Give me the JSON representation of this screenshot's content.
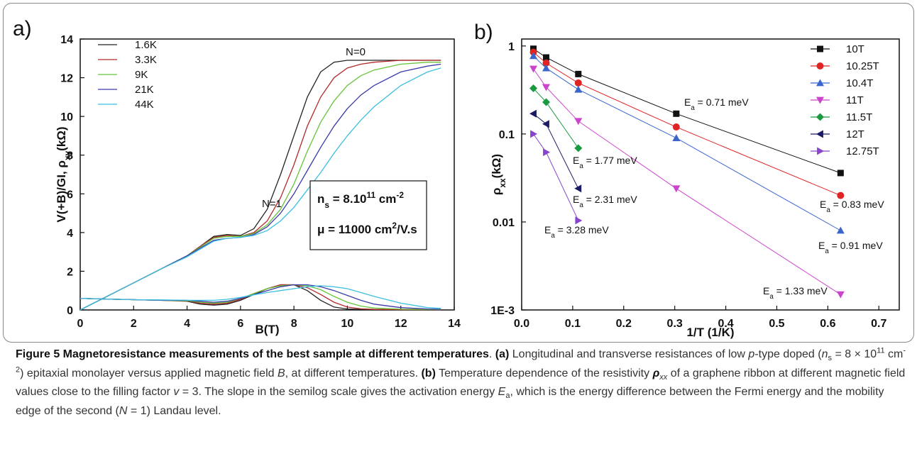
{
  "chart_data": [
    {
      "type": "line",
      "panel_label": "a)",
      "xlabel": "B(T)",
      "ylabel": {
        "runs": [
          {
            "text": "V(+B)/GI, ρ"
          },
          {
            "text": "xy",
            "style": [
              "sub"
            ]
          },
          {
            "text": "(kΩ)"
          }
        ]
      },
      "xlim": [
        0,
        14
      ],
      "ylim": [
        0,
        14
      ],
      "xticks": [
        0,
        2,
        4,
        6,
        8,
        10,
        12,
        14
      ],
      "yticks": [
        0,
        2,
        4,
        6,
        8,
        10,
        12,
        14
      ],
      "legend": "upper left",
      "x": [
        0,
        1,
        2,
        3,
        4,
        4.5,
        5,
        5.5,
        6,
        6.5,
        7,
        7.5,
        8,
        8.5,
        9,
        9.5,
        10,
        10.5,
        11,
        12,
        13,
        13.5
      ],
      "series": [
        {
          "name": "1.6K",
          "color": "#222222",
          "values": [
            0,
            0.7,
            1.4,
            2.1,
            2.8,
            3.3,
            3.8,
            3.9,
            3.85,
            4.2,
            5.2,
            7.0,
            9.0,
            11.0,
            12.3,
            12.8,
            12.9,
            12.9,
            12.9,
            12.9,
            12.9,
            12.9
          ],
          "rxx_values": [
            0.6,
            0.56,
            0.53,
            0.5,
            0.45,
            0.3,
            0.25,
            0.3,
            0.5,
            0.8,
            1.1,
            1.3,
            1.3,
            1.0,
            0.5,
            0.15,
            0.05,
            0.03,
            0.02,
            0.02,
            0.02,
            0.02
          ]
        },
        {
          "name": "3.3K",
          "color": "#b22a2a",
          "values": [
            0,
            0.7,
            1.4,
            2.1,
            2.8,
            3.3,
            3.75,
            3.85,
            3.8,
            4.0,
            4.6,
            5.8,
            7.5,
            9.5,
            11.0,
            12.0,
            12.5,
            12.7,
            12.8,
            12.9,
            12.9,
            12.9
          ],
          "rxx_values": [
            0.6,
            0.56,
            0.53,
            0.5,
            0.47,
            0.35,
            0.3,
            0.35,
            0.55,
            0.85,
            1.1,
            1.3,
            1.3,
            1.15,
            0.8,
            0.4,
            0.15,
            0.06,
            0.03,
            0.02,
            0.02,
            0.02
          ]
        },
        {
          "name": "9K",
          "color": "#66c43a",
          "values": [
            0,
            0.7,
            1.4,
            2.1,
            2.8,
            3.25,
            3.7,
            3.8,
            3.8,
            3.95,
            4.4,
            5.2,
            6.5,
            8.2,
            9.7,
            10.8,
            11.6,
            12.1,
            12.4,
            12.7,
            12.8,
            12.8
          ],
          "rxx_values": [
            0.6,
            0.56,
            0.53,
            0.5,
            0.48,
            0.4,
            0.35,
            0.4,
            0.6,
            0.85,
            1.1,
            1.25,
            1.3,
            1.25,
            1.05,
            0.7,
            0.4,
            0.2,
            0.1,
            0.04,
            0.03,
            0.03
          ]
        },
        {
          "name": "21K",
          "color": "#3a3aa8",
          "values": [
            0,
            0.7,
            1.4,
            2.1,
            2.8,
            3.2,
            3.6,
            3.7,
            3.75,
            3.9,
            4.3,
            5.0,
            6.0,
            7.2,
            8.4,
            9.5,
            10.4,
            11.1,
            11.6,
            12.3,
            12.6,
            12.7
          ],
          "rxx_values": [
            0.6,
            0.56,
            0.53,
            0.5,
            0.5,
            0.45,
            0.4,
            0.45,
            0.6,
            0.8,
            1.0,
            1.2,
            1.3,
            1.3,
            1.2,
            1.0,
            0.75,
            0.5,
            0.3,
            0.12,
            0.05,
            0.04
          ]
        },
        {
          "name": "44K",
          "color": "#3cbfe0",
          "values": [
            0,
            0.7,
            1.4,
            2.1,
            2.75,
            3.15,
            3.55,
            3.7,
            3.75,
            3.85,
            4.1,
            4.6,
            5.3,
            6.2,
            7.1,
            8.1,
            9.0,
            9.8,
            10.5,
            11.6,
            12.3,
            12.5
          ],
          "rxx_values": [
            0.6,
            0.56,
            0.53,
            0.52,
            0.5,
            0.5,
            0.5,
            0.55,
            0.65,
            0.78,
            0.9,
            1.0,
            1.1,
            1.2,
            1.25,
            1.2,
            1.1,
            0.9,
            0.7,
            0.35,
            0.12,
            0.08
          ]
        }
      ],
      "annotations": [
        {
          "runs": [
            {
              "text": "N=0"
            }
          ]
        },
        {
          "runs": [
            {
              "text": "N=1"
            }
          ]
        },
        {
          "runs": [
            {
              "text": "n"
            },
            {
              "text": "s",
              "style": [
                "sub"
              ]
            },
            {
              "text": " = 8.10"
            },
            {
              "text": "11",
              "style": [
                "sup"
              ]
            },
            {
              "text": " cm"
            },
            {
              "text": "-2",
              "style": [
                "sup"
              ]
            }
          ]
        },
        {
          "runs": [
            {
              "text": "μ = 11000 cm"
            },
            {
              "text": "2",
              "style": [
                "sup"
              ]
            },
            {
              "text": "/V.s"
            }
          ]
        }
      ]
    },
    {
      "type": "scatter",
      "panel_label": "b)",
      "xlabel": "1/T (1/K)",
      "ylabel": {
        "runs": [
          {
            "text": "ρ"
          },
          {
            "text": "xx",
            "style": [
              "sub"
            ]
          },
          {
            "text": "(kΩ)"
          }
        ]
      },
      "yscale": "log",
      "xlim": [
        0,
        0.74
      ],
      "ylim": [
        0.001,
        1.2
      ],
      "xticks": [
        {
          "value": 0,
          "label": "0.0"
        },
        0.1,
        0.2,
        0.3,
        0.4,
        0.5,
        0.6,
        0.7
      ],
      "yticks": [
        {
          "value": 0.001,
          "label": "1E-3"
        },
        0.01,
        0.1,
        1
      ],
      "legend": "upper right",
      "series": [
        {
          "name": "10T",
          "color": "#111111",
          "marker": "square",
          "x": [
            0.023,
            0.048,
            0.111,
            0.303,
            0.625
          ],
          "values": [
            0.93,
            0.74,
            0.48,
            0.17,
            0.036
          ]
        },
        {
          "name": "10.25T",
          "color": "#e02424",
          "marker": "circle",
          "x": [
            0.023,
            0.048,
            0.111,
            0.303,
            0.625
          ],
          "values": [
            0.85,
            0.64,
            0.38,
            0.12,
            0.02
          ]
        },
        {
          "name": "10.4T",
          "color": "#3a66cc",
          "marker": "triangle-up",
          "x": [
            0.023,
            0.048,
            0.111,
            0.303,
            0.625
          ],
          "values": [
            0.77,
            0.56,
            0.32,
            0.09,
            0.008
          ]
        },
        {
          "name": "11T",
          "color": "#cc44cc",
          "marker": "triangle-down",
          "x": [
            0.023,
            0.048,
            0.111,
            0.303,
            0.625
          ],
          "values": [
            0.55,
            0.34,
            0.14,
            0.024,
            0.0015
          ]
        },
        {
          "name": "11.5T",
          "color": "#1a9a40",
          "marker": "diamond",
          "x": [
            0.023,
            0.048,
            0.111
          ],
          "values": [
            0.33,
            0.23,
            0.069
          ]
        },
        {
          "name": "12T",
          "color": "#1a1a66",
          "marker": "triangle-left",
          "x": [
            0.023,
            0.048,
            0.111
          ],
          "values": [
            0.17,
            0.13,
            0.024
          ]
        },
        {
          "name": "12.75T",
          "color": "#8844cc",
          "marker": "triangle-right",
          "x": [
            0.023,
            0.048,
            0.111
          ],
          "values": [
            0.1,
            0.062,
            0.0104
          ]
        }
      ],
      "annotations": [
        {
          "runs": [
            {
              "text": "E"
            },
            {
              "text": "a",
              "style": [
                "sub"
              ]
            },
            {
              "text": " = 0.71 meV"
            }
          ]
        },
        {
          "runs": [
            {
              "text": "E"
            },
            {
              "text": "a",
              "style": [
                "sub"
              ]
            },
            {
              "text": " = 0.83 meV"
            }
          ]
        },
        {
          "runs": [
            {
              "text": "E"
            },
            {
              "text": "a",
              "style": [
                "sub"
              ]
            },
            {
              "text": " = 0.91 meV"
            }
          ]
        },
        {
          "runs": [
            {
              "text": "E"
            },
            {
              "text": "a",
              "style": [
                "sub"
              ]
            },
            {
              "text": " = 1.33 meV"
            }
          ]
        },
        {
          "runs": [
            {
              "text": "E"
            },
            {
              "text": "a",
              "style": [
                "sub"
              ]
            },
            {
              "text": " = 1.77 meV"
            }
          ]
        },
        {
          "runs": [
            {
              "text": "E"
            },
            {
              "text": "a",
              "style": [
                "sub"
              ]
            },
            {
              "text": " = 2.31 meV"
            }
          ]
        },
        {
          "runs": [
            {
              "text": "E"
            },
            {
              "text": "a",
              "style": [
                "sub"
              ]
            },
            {
              "text": " = 3.28 meV"
            }
          ]
        }
      ]
    }
  ],
  "caption": {
    "runs": [
      {
        "text": "Figure 5 Magnetoresistance measurements of the best sample at different temperatures",
        "style": [
          "bold"
        ]
      },
      {
        "text": ". "
      },
      {
        "text": "(a)",
        "style": [
          "bold"
        ]
      },
      {
        "text": " Longitudinal and transverse resistances of low "
      },
      {
        "text": "p",
        "style": [
          "italic"
        ]
      },
      {
        "text": "-type doped ("
      },
      {
        "text": "n",
        "style": [
          "italic"
        ]
      },
      {
        "text": "s",
        "style": [
          "sub"
        ]
      },
      {
        "text": " = 8 × 10"
      },
      {
        "text": "11",
        "style": [
          "sup"
        ]
      },
      {
        "text": " cm"
      },
      {
        "text": "-2",
        "style": [
          "sup"
        ]
      },
      {
        "text": ") epitaxial monolayer versus applied magnetic field "
      },
      {
        "text": "B",
        "style": [
          "italic"
        ]
      },
      {
        "text": ", at different temperatures. "
      },
      {
        "text": "(b)",
        "style": [
          "bold"
        ]
      },
      {
        "text": " Temperature dependence of the resistivity "
      },
      {
        "text": "ρ",
        "style": [
          "bold",
          "italic"
        ]
      },
      {
        "text": "xx",
        "style": [
          "italic",
          "sub"
        ]
      },
      {
        "text": " of a graphene ribbon at different magnetic field values close to the filling factor "
      },
      {
        "text": "v",
        "style": [
          "italic"
        ]
      },
      {
        "text": " = 3. The slope in the semilog scale gives the activation energy "
      },
      {
        "text": "E",
        "style": [
          "italic"
        ]
      },
      {
        "text": "a",
        "style": [
          "sub"
        ]
      },
      {
        "text": ", which is the energy difference between the Fermi energy and the mobility edge of the second ("
      },
      {
        "text": "N",
        "style": [
          "italic"
        ]
      },
      {
        "text": " = 1) Landau level."
      }
    ]
  }
}
